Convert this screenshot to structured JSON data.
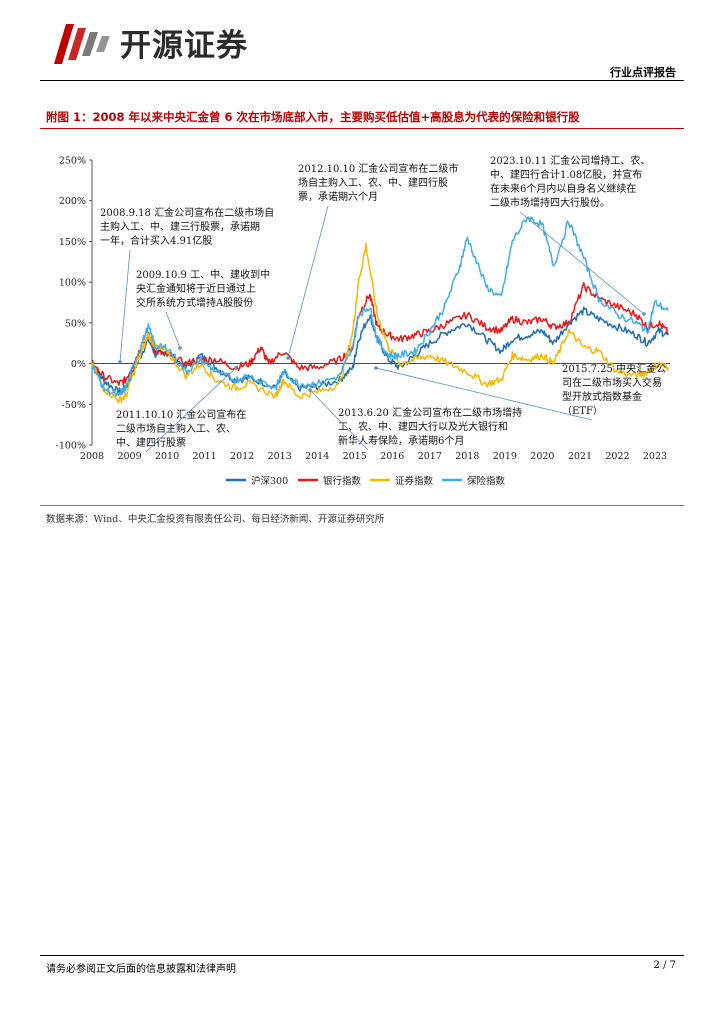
{
  "header": {
    "brand": "开源证券",
    "report_type": "行业点评报告"
  },
  "figure": {
    "title": "附图 1：2008 年以来中央汇金曾 6 次在市场底部入市，主要购买低估值+高股息为代表的保险和银行股",
    "source": "数据来源：Wind、中央汇金投资有限责任公司、每日经济新闻、开源证券研究所"
  },
  "colors": {
    "hs300": "#1f6fb5",
    "bank": "#e8191a",
    "securities": "#f6b800",
    "insurance": "#3faee5",
    "brand_red": "#c00000"
  },
  "chart_data": {
    "type": "line",
    "title": "",
    "xlabel": "",
    "ylabel": "",
    "xlim": [
      2008,
      2023.4
    ],
    "ylim": [
      -100,
      250
    ],
    "x_ticks": [
      "2008",
      "2009",
      "2010",
      "2011",
      "2012",
      "2013",
      "2014",
      "2015",
      "2016",
      "2017",
      "2018",
      "2019",
      "2020",
      "2021",
      "2022",
      "2023"
    ],
    "y_ticks": [
      "250%",
      "200%",
      "150%",
      "100%",
      "50%",
      "0%",
      "-50%",
      "-100%"
    ],
    "y_tick_values": [
      250,
      200,
      150,
      100,
      50,
      0,
      -50,
      -100
    ],
    "series": [
      {
        "name": "沪深300",
        "color": "#1f6fb5",
        "points": [
          [
            2008.0,
            0
          ],
          [
            2008.3,
            -20
          ],
          [
            2008.7,
            -35
          ],
          [
            2008.9,
            -30
          ],
          [
            2009.2,
            0
          ],
          [
            2009.5,
            30
          ],
          [
            2009.7,
            10
          ],
          [
            2010.0,
            15
          ],
          [
            2010.5,
            -5
          ],
          [
            2010.9,
            10
          ],
          [
            2011.3,
            -5
          ],
          [
            2011.8,
            -20
          ],
          [
            2012.2,
            -18
          ],
          [
            2012.9,
            -28
          ],
          [
            2013.1,
            -12
          ],
          [
            2013.5,
            -30
          ],
          [
            2014.0,
            -28
          ],
          [
            2014.6,
            -20
          ],
          [
            2014.95,
            -5
          ],
          [
            2015.1,
            30
          ],
          [
            2015.4,
            60
          ],
          [
            2015.6,
            30
          ],
          [
            2015.9,
            5
          ],
          [
            2016.2,
            -5
          ],
          [
            2016.6,
            10
          ],
          [
            2017.0,
            25
          ],
          [
            2017.5,
            40
          ],
          [
            2018.0,
            50
          ],
          [
            2018.5,
            30
          ],
          [
            2018.9,
            15
          ],
          [
            2019.2,
            30
          ],
          [
            2019.6,
            35
          ],
          [
            2020.0,
            40
          ],
          [
            2020.3,
            25
          ],
          [
            2020.7,
            50
          ],
          [
            2021.1,
            65
          ],
          [
            2021.5,
            55
          ],
          [
            2022.0,
            45
          ],
          [
            2022.5,
            35
          ],
          [
            2022.8,
            25
          ],
          [
            2023.1,
            40
          ],
          [
            2023.35,
            35
          ]
        ]
      },
      {
        "name": "银行指数",
        "color": "#e8191a",
        "points": [
          [
            2008.0,
            0
          ],
          [
            2008.3,
            -15
          ],
          [
            2008.7,
            -25
          ],
          [
            2008.9,
            -20
          ],
          [
            2009.2,
            10
          ],
          [
            2009.5,
            35
          ],
          [
            2009.7,
            15
          ],
          [
            2010.0,
            10
          ],
          [
            2010.5,
            0
          ],
          [
            2010.9,
            5
          ],
          [
            2011.3,
            5
          ],
          [
            2011.8,
            -5
          ],
          [
            2012.2,
            0
          ],
          [
            2012.5,
            20
          ],
          [
            2012.7,
            0
          ],
          [
            2013.1,
            15
          ],
          [
            2013.5,
            -5
          ],
          [
            2014.0,
            -5
          ],
          [
            2014.6,
            5
          ],
          [
            2014.95,
            20
          ],
          [
            2015.1,
            60
          ],
          [
            2015.4,
            85
          ],
          [
            2015.6,
            45
          ],
          [
            2015.9,
            35
          ],
          [
            2016.2,
            30
          ],
          [
            2016.6,
            35
          ],
          [
            2017.0,
            40
          ],
          [
            2017.5,
            50
          ],
          [
            2018.0,
            60
          ],
          [
            2018.5,
            45
          ],
          [
            2018.9,
            40
          ],
          [
            2019.2,
            55
          ],
          [
            2019.6,
            50
          ],
          [
            2020.0,
            55
          ],
          [
            2020.3,
            45
          ],
          [
            2020.7,
            50
          ],
          [
            2021.1,
            95
          ],
          [
            2021.5,
            80
          ],
          [
            2022.0,
            70
          ],
          [
            2022.5,
            60
          ],
          [
            2022.8,
            45
          ],
          [
            2023.1,
            50
          ],
          [
            2023.35,
            38
          ]
        ]
      },
      {
        "name": "证券指数",
        "color": "#f6b800",
        "points": [
          [
            2008.0,
            0
          ],
          [
            2008.3,
            -30
          ],
          [
            2008.7,
            -45
          ],
          [
            2008.9,
            -40
          ],
          [
            2009.2,
            0
          ],
          [
            2009.5,
            35
          ],
          [
            2009.7,
            20
          ],
          [
            2010.0,
            15
          ],
          [
            2010.5,
            -15
          ],
          [
            2010.9,
            0
          ],
          [
            2011.3,
            -20
          ],
          [
            2011.8,
            -30
          ],
          [
            2012.2,
            -25
          ],
          [
            2012.9,
            -40
          ],
          [
            2013.1,
            -20
          ],
          [
            2013.5,
            -40
          ],
          [
            2014.0,
            -35
          ],
          [
            2014.6,
            -25
          ],
          [
            2014.95,
            40
          ],
          [
            2015.1,
            100
          ],
          [
            2015.3,
            145
          ],
          [
            2015.6,
            60
          ],
          [
            2015.9,
            20
          ],
          [
            2016.2,
            0
          ],
          [
            2016.6,
            5
          ],
          [
            2017.0,
            10
          ],
          [
            2017.5,
            0
          ],
          [
            2018.0,
            -10
          ],
          [
            2018.5,
            -25
          ],
          [
            2018.9,
            -20
          ],
          [
            2019.2,
            10
          ],
          [
            2019.6,
            5
          ],
          [
            2020.0,
            10
          ],
          [
            2020.3,
            0
          ],
          [
            2020.7,
            40
          ],
          [
            2021.1,
            20
          ],
          [
            2021.5,
            15
          ],
          [
            2022.0,
            -10
          ],
          [
            2022.5,
            -15
          ],
          [
            2022.8,
            -10
          ],
          [
            2023.1,
            0
          ],
          [
            2023.35,
            -5
          ]
        ]
      },
      {
        "name": "保险指数",
        "color": "#3faee5",
        "points": [
          [
            2008.0,
            0
          ],
          [
            2008.3,
            -30
          ],
          [
            2008.7,
            -40
          ],
          [
            2008.9,
            -30
          ],
          [
            2009.2,
            10
          ],
          [
            2009.5,
            45
          ],
          [
            2009.7,
            20
          ],
          [
            2010.0,
            20
          ],
          [
            2010.5,
            -10
          ],
          [
            2010.9,
            5
          ],
          [
            2011.3,
            -10
          ],
          [
            2011.8,
            -20
          ],
          [
            2012.2,
            -15
          ],
          [
            2012.9,
            -30
          ],
          [
            2013.1,
            -10
          ],
          [
            2013.5,
            -25
          ],
          [
            2014.0,
            -25
          ],
          [
            2014.6,
            -15
          ],
          [
            2014.95,
            20
          ],
          [
            2015.1,
            60
          ],
          [
            2015.4,
            70
          ],
          [
            2015.6,
            30
          ],
          [
            2015.9,
            10
          ],
          [
            2016.2,
            10
          ],
          [
            2016.6,
            15
          ],
          [
            2017.0,
            40
          ],
          [
            2017.4,
            70
          ],
          [
            2017.8,
            120
          ],
          [
            2018.0,
            155
          ],
          [
            2018.5,
            95
          ],
          [
            2018.9,
            80
          ],
          [
            2019.2,
            150
          ],
          [
            2019.6,
            180
          ],
          [
            2020.0,
            170
          ],
          [
            2020.3,
            120
          ],
          [
            2020.7,
            175
          ],
          [
            2021.1,
            130
          ],
          [
            2021.5,
            80
          ],
          [
            2022.0,
            60
          ],
          [
            2022.5,
            50
          ],
          [
            2022.8,
            40
          ],
          [
            2023.0,
            75
          ],
          [
            2023.35,
            65
          ]
        ]
      }
    ],
    "legend": {
      "position": "bottom",
      "entries": [
        "沪深300",
        "银行指数",
        "证券指数",
        "保险指数"
      ]
    },
    "annotations": [
      {
        "id": "a2008",
        "lines": [
          "2008.9.18 汇金公司宣布在二级市场自",
          "主购入工、中、建三行股票，承诺期",
          "一年，合计买入4.91亿股"
        ]
      },
      {
        "id": "a2009",
        "lines": [
          "2009.10.9 工、中、建收到中",
          "央汇金通知将于近日通过上",
          "交所系统方式增持A股股份"
        ]
      },
      {
        "id": "a2011",
        "lines": [
          "2011.10.10 汇金公司宣布在",
          "二级市场自主购入工、农、",
          "中、建四行股票"
        ]
      },
      {
        "id": "a2012",
        "lines": [
          "2012.10.10 汇金公司宣布在二级市",
          "场自主购入工、农、中、建四行股",
          "票，承诺期六个月"
        ]
      },
      {
        "id": "a2013",
        "lines": [
          "2013.6.20 汇金公司宣布在二级市场增持",
          "工、农、中、建四大行以及光大银行和",
          "新华人寿保险，承诺期6个月"
        ]
      },
      {
        "id": "a2015",
        "lines": [
          "2015.7.25 中央汇金公",
          "司在二级市场买入交易",
          "型开放式指数基金",
          "（ETF）"
        ]
      },
      {
        "id": "a2023",
        "lines": [
          "2023.10.11 汇金公司增持工、农、",
          "中、建四行合计1.08亿股，并宣布",
          "在未来6个月内以自身名义继续在",
          "二级市场增持四大行股份。"
        ]
      }
    ]
  },
  "footer": {
    "disclaimer": "请务必参阅正文后面的信息披露和法律声明",
    "page": "2 / 7"
  }
}
